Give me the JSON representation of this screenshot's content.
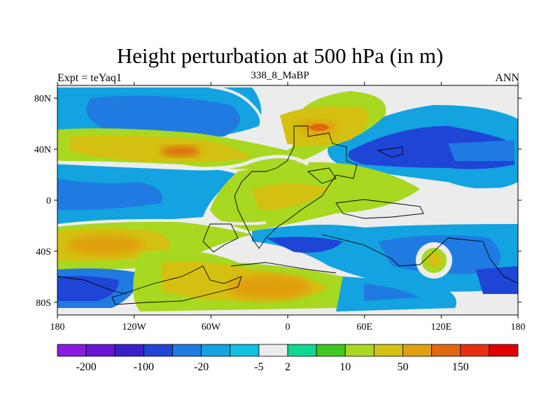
{
  "title": "Height perturbation at 500 hPa (in m)",
  "left_string": "Expt = teYaq1",
  "center_string": "338_8_MaBP",
  "right_string": "ANN",
  "map": {
    "projection": "cylindrical equidistant",
    "lon_range": [
      -180,
      180
    ],
    "lat_range": [
      -90,
      90
    ],
    "y_ticks": [
      {
        "lat": 80,
        "label": "80N"
      },
      {
        "lat": 40,
        "label": "40N"
      },
      {
        "lat": 0,
        "label": "0"
      },
      {
        "lat": -40,
        "label": "40S"
      },
      {
        "lat": -80,
        "label": "80S"
      }
    ],
    "x_ticks": [
      {
        "lon": -180,
        "label": "180"
      },
      {
        "lon": -120,
        "label": "120W"
      },
      {
        "lon": -60,
        "label": "60W"
      },
      {
        "lon": 0,
        "label": "0"
      },
      {
        "lon": 60,
        "label": "60E"
      },
      {
        "lon": 120,
        "label": "120E"
      },
      {
        "lon": 180,
        "label": "180"
      }
    ]
  },
  "colorbar": {
    "colors": [
      "#8a1be0",
      "#6a14d8",
      "#3a20c8",
      "#1f45d6",
      "#1f7be2",
      "#12a3e0",
      "#10c0e0",
      "#ececec",
      "#10d890",
      "#40c820",
      "#a8d820",
      "#d4c010",
      "#e0a010",
      "#e06810",
      "#e83010",
      "#e00000"
    ],
    "labels": [
      {
        "after": 1,
        "text": "-200"
      },
      {
        "after": 3,
        "text": "-100"
      },
      {
        "after": 5,
        "text": "-20"
      },
      {
        "after": 7,
        "text": "-5"
      },
      {
        "after": 8,
        "text": "2"
      },
      {
        "after": 10,
        "text": "10"
      },
      {
        "after": 12,
        "text": "50"
      },
      {
        "after": 14,
        "text": "150"
      }
    ]
  }
}
